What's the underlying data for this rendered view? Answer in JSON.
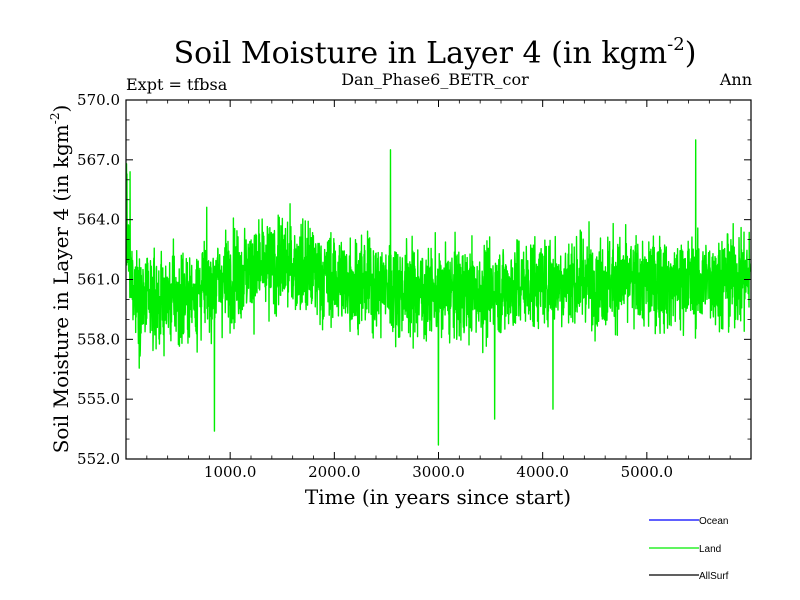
{
  "chart_data": {
    "type": "line",
    "title": "Soil Moisture in Layer 4 (in kgm",
    "title_sup": "-2",
    "title_close": ")",
    "subtitle_left": "Expt = tfbsa",
    "subtitle_center": "Dan_Phase6_BETR_cor",
    "subtitle_right": "Ann",
    "xlabel": "Time (in years since start)",
    "ylabel": "Soil Moisture in Layer 4 (in kgm",
    "ylabel_sup": "-2",
    "ylabel_close": ")",
    "xlim": [
      0,
      6000
    ],
    "ylim": [
      552.0,
      570.0
    ],
    "xticks": [
      1000,
      2000,
      3000,
      4000,
      5000
    ],
    "xtick_labels": [
      "1000.0",
      "2000.0",
      "3000.0",
      "4000.0",
      "5000.0"
    ],
    "yticks": [
      552,
      555,
      558,
      561,
      564,
      567,
      570
    ],
    "ytick_labels": [
      "552.0",
      "555.0",
      "558.0",
      "561.0",
      "564.0",
      "567.0",
      "570.0"
    ],
    "legend": [
      {
        "name": "Ocean",
        "color": "#0000ff"
      },
      {
        "name": "Land",
        "color": "#00ee00"
      },
      {
        "name": "AllSurf",
        "color": "#000000"
      }
    ],
    "series": [
      {
        "name": "Land",
        "color": "#00ee00",
        "x_start": 1,
        "x_end": 5990,
        "mean": 560.7,
        "noise_std": 1.6,
        "baseline": [
          [
            0,
            563.5
          ],
          [
            50,
            561.0
          ],
          [
            150,
            559.8
          ],
          [
            600,
            560.2
          ],
          [
            1000,
            561.2
          ],
          [
            1500,
            561.8
          ],
          [
            2000,
            561.0
          ],
          [
            2500,
            560.6
          ],
          [
            3000,
            560.3
          ],
          [
            3500,
            560.4
          ],
          [
            4000,
            560.9
          ],
          [
            4500,
            561.0
          ],
          [
            5000,
            560.8
          ],
          [
            5500,
            560.9
          ],
          [
            6000,
            561.2
          ]
        ],
        "extremes": [
          [
            5,
            566.8
          ],
          [
            40,
            566.4
          ],
          [
            850,
            553.4
          ],
          [
            3000,
            552.7
          ],
          [
            5470,
            568.0
          ],
          [
            2540,
            567.5
          ],
          [
            3540,
            554.0
          ],
          [
            4100,
            554.5
          ]
        ]
      }
    ]
  }
}
